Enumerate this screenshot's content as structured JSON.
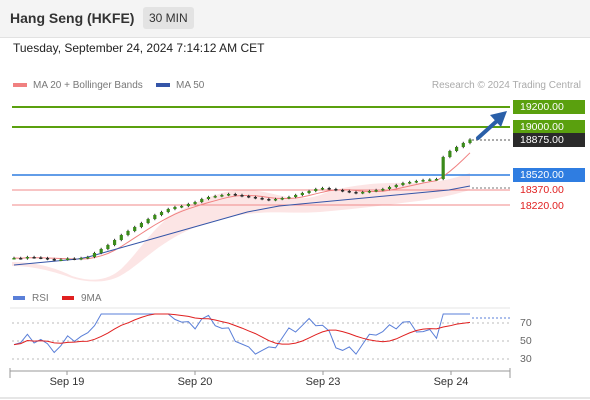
{
  "header": {
    "title": "Hang Seng (HKFE)",
    "timeframe": "30 MIN"
  },
  "datetime": "Tuesday, September 24, 2024 7:14:12 AM CET",
  "legend": {
    "ma20": "MA 20 + Bollinger Bands",
    "ma50": "MA 50",
    "credit": "Research © 2024 Trading Central"
  },
  "colors": {
    "resistance": "#5aa00e",
    "pivot": "#2f7de1",
    "support": "#e02020",
    "candle": "#3a8a1a",
    "ma20": "#f08080",
    "ma50": "#3555a8",
    "rsi": "#5a7fd8",
    "rsi_ma": "#e02020"
  },
  "price_levels": [
    {
      "label": "19200.00",
      "kind": "resistance"
    },
    {
      "label": "19000.00",
      "kind": "resistance"
    },
    {
      "label": "18875.00",
      "kind": "last"
    },
    {
      "label": "18520.00",
      "kind": "pivot"
    },
    {
      "label": "18370.00",
      "kind": "support"
    },
    {
      "label": "18220.00",
      "kind": "support"
    }
  ],
  "rsi_legend": {
    "rsi": "RSI",
    "ma": "9MA"
  },
  "rsi_levels": [
    "70",
    "50",
    "30"
  ],
  "x_labels": [
    "Sep 19",
    "Sep 20",
    "Sep 23",
    "Sep 24"
  ],
  "chart_data": {
    "type": "line",
    "title": "Hang Seng (HKFE)",
    "timeframe": "30 MIN",
    "x_ticks": [
      "Sep 19",
      "Sep 20",
      "Sep 23",
      "Sep 24"
    ],
    "ylim": [
      17600,
      19300
    ],
    "series": [
      {
        "name": "Price",
        "values": [
          17690,
          17685,
          17700,
          17695,
          17690,
          17680,
          17670,
          17675,
          17685,
          17680,
          17690,
          17700,
          17740,
          17780,
          17820,
          17870,
          17920,
          17960,
          18000,
          18040,
          18080,
          18120,
          18150,
          18180,
          18200,
          18210,
          18230,
          18250,
          18280,
          18300,
          18310,
          18320,
          18330,
          18320,
          18310,
          18300,
          18290,
          18280,
          18270,
          18280,
          18290,
          18300,
          18320,
          18340,
          18360,
          18380,
          18390,
          18380,
          18370,
          18360,
          18350,
          18340,
          18350,
          18360,
          18370,
          18380,
          18400,
          18420,
          18440,
          18450,
          18460,
          18470,
          18475,
          18480,
          18700,
          18760,
          18800,
          18840,
          18875
        ]
      },
      {
        "name": "MA 50",
        "values": [
          17620,
          17630,
          17640,
          17650,
          17660,
          17670,
          17680,
          17700,
          17730,
          17760,
          17790,
          17820,
          17850,
          17880,
          17910,
          17940,
          17970,
          18000,
          18030,
          18060,
          18090,
          18120,
          18150,
          18170,
          18190,
          18210,
          18220,
          18230,
          18240,
          18250,
          18260,
          18270,
          18280,
          18290,
          18300,
          18310,
          18320,
          18330,
          18340,
          18350,
          18360,
          18370,
          18390,
          18410
        ]
      }
    ],
    "levels": {
      "resistance": [
        19200,
        19000
      ],
      "pivot": 18520,
      "support": [
        18370,
        18220
      ],
      "last": 18875
    },
    "rsi_levels": [
      70,
      50,
      30
    ]
  }
}
